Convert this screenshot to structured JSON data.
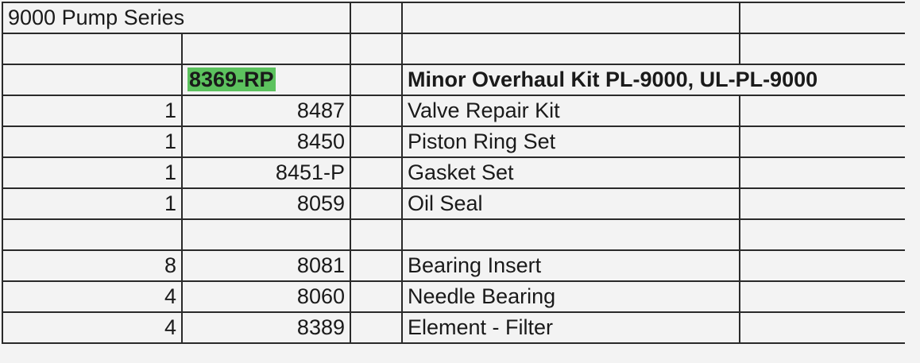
{
  "title": "9000 Pump Series",
  "kit": {
    "part": "8369-RP",
    "description": "Minor Overhaul Kit PL-9000, UL-PL-9000",
    "highlight_color": "#5cc25e"
  },
  "rows": [
    {
      "qty": "1",
      "part": "8487",
      "description": "Valve Repair Kit"
    },
    {
      "qty": "1",
      "part": "8450",
      "description": "Piston Ring Set"
    },
    {
      "qty": "1",
      "part": "8451-P",
      "description": "Gasket Set"
    },
    {
      "qty": "1",
      "part": "8059",
      "description": "Oil Seal"
    },
    {
      "qty": "",
      "part": "",
      "description": ""
    },
    {
      "qty": "8",
      "part": "8081",
      "description": "Bearing Insert"
    },
    {
      "qty": "4",
      "part": "8060",
      "description": "Needle Bearing"
    },
    {
      "qty": "4",
      "part": "8389",
      "description": "Element - Filter"
    }
  ]
}
